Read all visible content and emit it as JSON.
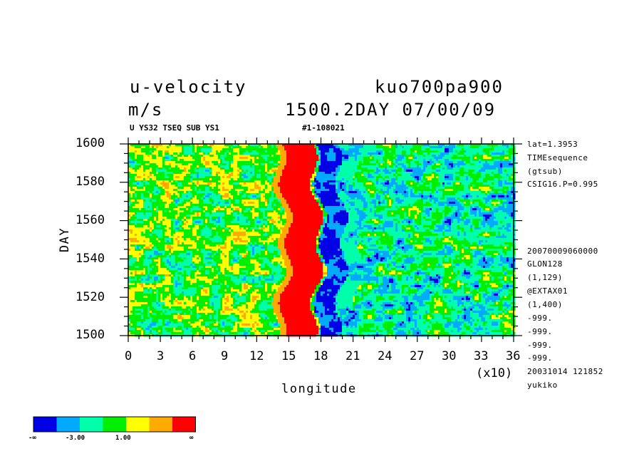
{
  "header": {
    "title_left": "u-velocity",
    "title_right": "kuo700pa900",
    "units": "m/s",
    "time_stamp": "1500.2DAY 07/00/09",
    "sub_left": "U YS32 TSEQ SUB YS1",
    "sub_right": "#1-108021"
  },
  "info_lines": [
    "lat=1.3953",
    "TIMEsequence",
    "(gtsub)",
    "CSIG16.P=0.995",
    "20070009060000",
    "GLON128",
    "(1,129)",
    "@EXTAX01",
    "(1,400)",
    "-999.",
    "-999.",
    "-999.",
    "-999.",
    "20031014 121852",
    "yukiko"
  ],
  "chart_data": {
    "type": "heatmap",
    "xlabel": "longitude",
    "ylabel": "DAY",
    "x_multiplier_label": "(x10)",
    "xlim": [
      0,
      36
    ],
    "ylim": [
      1500,
      1600
    ],
    "x_ticks": [
      "0",
      "3",
      "6",
      "9",
      "12",
      "15",
      "18",
      "21",
      "24",
      "27",
      "30",
      "33",
      "36"
    ],
    "y_ticks": [
      "1500",
      "1520",
      "1540",
      "1560",
      "1580",
      "1600"
    ],
    "color_levels": [
      "#0000e6",
      "#00aaff",
      "#00ffaa",
      "#00ee00",
      "#ffff00",
      "#ffaa00",
      "#ff0000"
    ],
    "colorbar_labels": [
      "-∞",
      "-3.00",
      "1.00",
      "∞"
    ],
    "features": [
      {
        "description": "strong positive u-velocity band",
        "lon_range": [
          14.5,
          17.5
        ],
        "level": 6
      },
      {
        "description": "strong negative u-velocity band",
        "lon_range": [
          18,
          20.5
        ],
        "level": 0
      }
    ]
  }
}
